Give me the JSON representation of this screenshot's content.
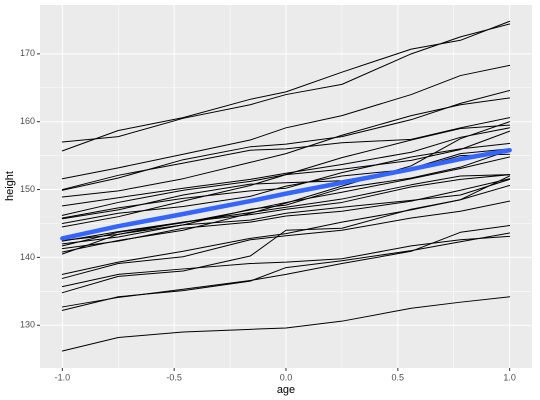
{
  "chart_data": {
    "type": "line",
    "x_label": "age",
    "y_label": "height",
    "x": [
      -1.0,
      -0.75,
      -0.46,
      -0.16,
      0.0,
      0.25,
      0.56,
      0.78,
      1.0
    ],
    "xlim": [
      -1.1,
      1.1
    ],
    "ylim": [
      123.7,
      177.2
    ],
    "xticks": [
      {
        "value": -1,
        "label": "-1.0"
      },
      {
        "value": -0.5,
        "label": "-0.5"
      },
      {
        "value": 0,
        "label": "0.0"
      },
      {
        "value": 0.5,
        "label": "0.5"
      },
      {
        "value": 1,
        "label": "1.0"
      }
    ],
    "yticks": [
      130,
      140,
      150,
      160,
      170
    ],
    "grid": true,
    "minor_grid": true,
    "series": [
      {
        "color": "#000000",
        "values": [
          140.5,
          143.4,
          144.8,
          147.1,
          147.7,
          150.2,
          151.7,
          153.3,
          155.8
        ]
      },
      {
        "color": "#000000",
        "values": [
          136.9,
          139.1,
          140.1,
          142.6,
          143.2,
          144.0,
          145.8,
          146.8,
          148.3
        ]
      },
      {
        "color": "#000000",
        "values": [
          150.0,
          152.1,
          153.9,
          155.8,
          156.0,
          156.9,
          157.4,
          159.1,
          160.6
        ]
      },
      {
        "color": "#000000",
        "values": [
          155.7,
          158.7,
          160.6,
          163.3,
          164.4,
          167.3,
          170.7,
          172.0,
          174.8
        ]
      },
      {
        "color": "#000000",
        "values": [
          145.8,
          147.3,
          148.7,
          149.8,
          150.2,
          152.5,
          154.8,
          156.0,
          156.8
        ]
      },
      {
        "color": "#000000",
        "values": [
          142.4,
          143.8,
          145.2,
          146.3,
          147.1,
          148.1,
          150.4,
          151.5,
          152.2
        ]
      },
      {
        "color": "#000000",
        "values": [
          141.3,
          142.4,
          144.3,
          145.2,
          146.1,
          146.8,
          148.3,
          149.9,
          151.6
        ]
      },
      {
        "color": "#000000",
        "values": [
          141.7,
          143.7,
          145.1,
          147.0,
          148.1,
          149.6,
          151.6,
          153.1,
          154.8
        ]
      },
      {
        "color": "#000000",
        "values": [
          132.7,
          134.1,
          135.3,
          136.6,
          137.5,
          139.1,
          140.9,
          143.7,
          144.7
        ]
      },
      {
        "color": "#000000",
        "values": [
          126.2,
          128.2,
          129.0,
          129.4,
          129.6,
          130.6,
          132.5,
          133.4,
          134.2
        ]
      },
      {
        "color": "#000000",
        "values": [
          142.5,
          143.4,
          145.2,
          146.6,
          147.4,
          148.6,
          150.7,
          152.0,
          152.2
        ]
      },
      {
        "color": "#000000",
        "values": [
          149.9,
          151.7,
          154.4,
          156.3,
          156.7,
          157.8,
          160.3,
          162.7,
          164.6
        ]
      },
      {
        "color": "#000000",
        "values": [
          148.9,
          149.8,
          151.6,
          154.0,
          155.3,
          158.0,
          160.9,
          162.5,
          163.5
        ]
      },
      {
        "color": "#000000",
        "values": [
          151.6,
          153.2,
          155.2,
          157.3,
          159.1,
          160.9,
          164.0,
          166.8,
          168.3
        ]
      },
      {
        "color": "#000000",
        "values": [
          137.5,
          139.3,
          140.9,
          142.8,
          143.5,
          145.2,
          147.0,
          148.5,
          150.6
        ]
      },
      {
        "color": "#000000",
        "values": [
          146.2,
          148.1,
          149.9,
          151.2,
          152.2,
          153.0,
          154.3,
          155.9,
          158.6
        ]
      },
      {
        "color": "#000000",
        "values": [
          144.5,
          146.0,
          148.3,
          150.6,
          152.2,
          154.7,
          157.3,
          159.0,
          159.5
        ]
      },
      {
        "color": "#000000",
        "values": [
          135.7,
          137.5,
          138.3,
          139.1,
          139.3,
          139.8,
          141.7,
          142.6,
          143.1
        ]
      },
      {
        "color": "#000000",
        "values": [
          147.6,
          148.8,
          150.2,
          151.5,
          152.4,
          153.7,
          155.5,
          157.7,
          159.1
        ]
      },
      {
        "color": "#000000",
        "values": [
          157.0,
          157.8,
          160.5,
          162.5,
          164.0,
          165.5,
          170.0,
          172.5,
          174.4
        ]
      },
      {
        "color": "#000000",
        "values": [
          145.7,
          147.0,
          149.2,
          150.8,
          151.0,
          151.3,
          153.1,
          155.3,
          156.0
        ]
      },
      {
        "color": "#000000",
        "values": [
          134.8,
          137.2,
          138.0,
          140.2,
          144.0,
          144.3,
          147.1,
          148.5,
          152.0
        ]
      },
      {
        "color": "#000000",
        "values": [
          132.2,
          134.2,
          135.1,
          136.5,
          138.5,
          139.5,
          141.0,
          142.3,
          143.6
        ]
      },
      {
        "color": "#000000",
        "values": [
          142.0,
          143.0,
          144.8,
          145.5,
          146.5,
          147.4,
          148.4,
          149.2,
          151.5
        ]
      },
      {
        "color": "#000000",
        "values": [
          145.0,
          146.5,
          147.5,
          149.0,
          150.5,
          152.0,
          153.0,
          155.0,
          155.2
        ]
      },
      {
        "color": "#000000",
        "values": [
          140.8,
          142.5,
          144.0,
          146.5,
          148.0,
          150.5,
          153.5,
          157.5,
          160.0
        ]
      }
    ],
    "smooth": {
      "color": "#3366ff",
      "values": [
        142.8,
        144.6,
        146.4,
        148.3,
        149.4,
        151.0,
        153.0,
        154.5,
        155.8
      ]
    }
  }
}
